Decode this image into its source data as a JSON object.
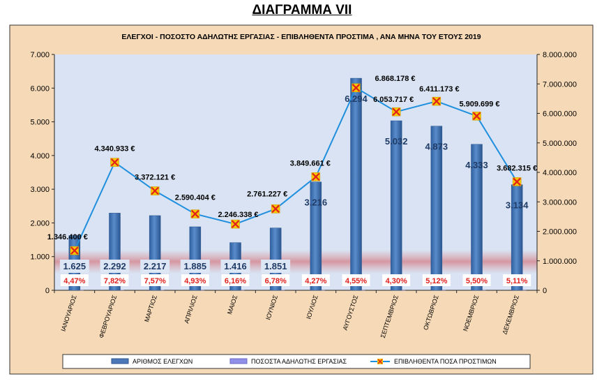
{
  "page": {
    "heading": "ΔΙΑΓΡΑΜΜΑ VII"
  },
  "chart_data": {
    "type": "bar",
    "title": "ΕΛΕΓΧΟΙ - ΠΟΣΟΣΤΟ ΑΔΗΛΩΤΗΣ ΕΡΓΑΣΙΑΣ - ΕΠΙΒΛΗΘΕΝΤΑ ΠΡΟΣΤΙΜΑ , ΑΝΑ ΜΗΝΑ ΤΟΥ ΕΤΟΥΣ 2019",
    "categories": [
      "ΙΑΝΟΥΑΡΙΟΣ",
      "ΦΕΒΡΟΥΑΡΙΟΣ",
      "ΜΑΡΤΙΟΣ",
      "ΑΠΡΙΛΙΟΣ",
      "ΜΑΙΟΣ",
      "ΙΟΥΝΙΟΣ",
      "ΙΟΥΛΙΟΣ",
      "ΑΥΓΟΥΣΤΟΣ",
      "ΣΕΠΤΕΜΒΡΙΟΣ",
      "ΟΚΤΩΒΡΙΟΣ",
      "ΝΟΕΜΒΡΙΟΣ",
      "ΔΕΚΕΜΒΡΙΟΣ"
    ],
    "series": [
      {
        "name": "ΑΡΙΘΜΟΣ ΕΛΕΓΧΩΝ",
        "axis": "left",
        "kind": "bar",
        "values": [
          1625,
          2292,
          2217,
          1885,
          1416,
          1851,
          3216,
          6294,
          5032,
          4873,
          4333,
          3134
        ],
        "labels": [
          "1.625",
          "2.292",
          "2.217",
          "1.885",
          "1.416",
          "1.851",
          "3.216",
          "6.294",
          "5.032",
          "4.873",
          "4.333",
          "3.134"
        ]
      },
      {
        "name": "ΠΟΣΟΣΤΑ ΑΔΗΛΩΤΗΣ ΕΡΓΑΣΙΑΣ",
        "axis": "left",
        "kind": "bar",
        "values": [
          4.47,
          7.82,
          7.57,
          4.93,
          6.16,
          6.78,
          4.27,
          4.55,
          4.3,
          5.12,
          5.5,
          5.11
        ],
        "labels": [
          "4,47%",
          "7,82%",
          "7,57%",
          "4,93%",
          "6,16%",
          "6,78%",
          "4,27%",
          "4,55%",
          "4,30%",
          "5,12%",
          "5,50%",
          "5,11%"
        ]
      },
      {
        "name": "ΕΠΙΒΛΗΘΕΝΤΑ ΠΟΣΑ ΠΡΟΣΤΙΜΩΝ",
        "axis": "right",
        "kind": "line",
        "values": [
          1346400,
          4340933,
          3372121,
          2590404,
          2246338,
          2761227,
          3849661,
          6868178,
          6053717,
          6411173,
          5909699,
          3682315
        ],
        "labels": [
          "1.346.400 €",
          "4.340.933 €",
          "3.372.121 €",
          "2.590.404 €",
          "2.246.338 €",
          "2.761.227 €",
          "3.849.661 €",
          "6.868.178 €",
          "6.053.717 €",
          "6.411.173 €",
          "5.909.699 €",
          "3.682.315 €"
        ]
      }
    ],
    "ylim_left": [
      0,
      7000
    ],
    "yticks_left": [
      "0",
      "1.000",
      "2.000",
      "3.000",
      "4.000",
      "5.000",
      "6.000",
      "7.000"
    ],
    "ylim_right": [
      0,
      8000000
    ],
    "yticks_right": [
      "0",
      "1.000.000",
      "2.000.000",
      "3.000.000",
      "4.000.000",
      "5.000.000",
      "6.000.000",
      "7.000.000",
      "8.000.000"
    ],
    "grid": false,
    "legend_position": "bottom"
  },
  "colors": {
    "outer_bg": "#f6d9b6",
    "plot_bg": "#d9e3f3",
    "bar": "#4a78b8",
    "bar_dark": "#2d568f",
    "line": "#1f8fde",
    "marker_fill": "#f7c600",
    "marker_x": "#e0201c",
    "pct_text": "#e0201c",
    "band": "#d9a0a6"
  }
}
